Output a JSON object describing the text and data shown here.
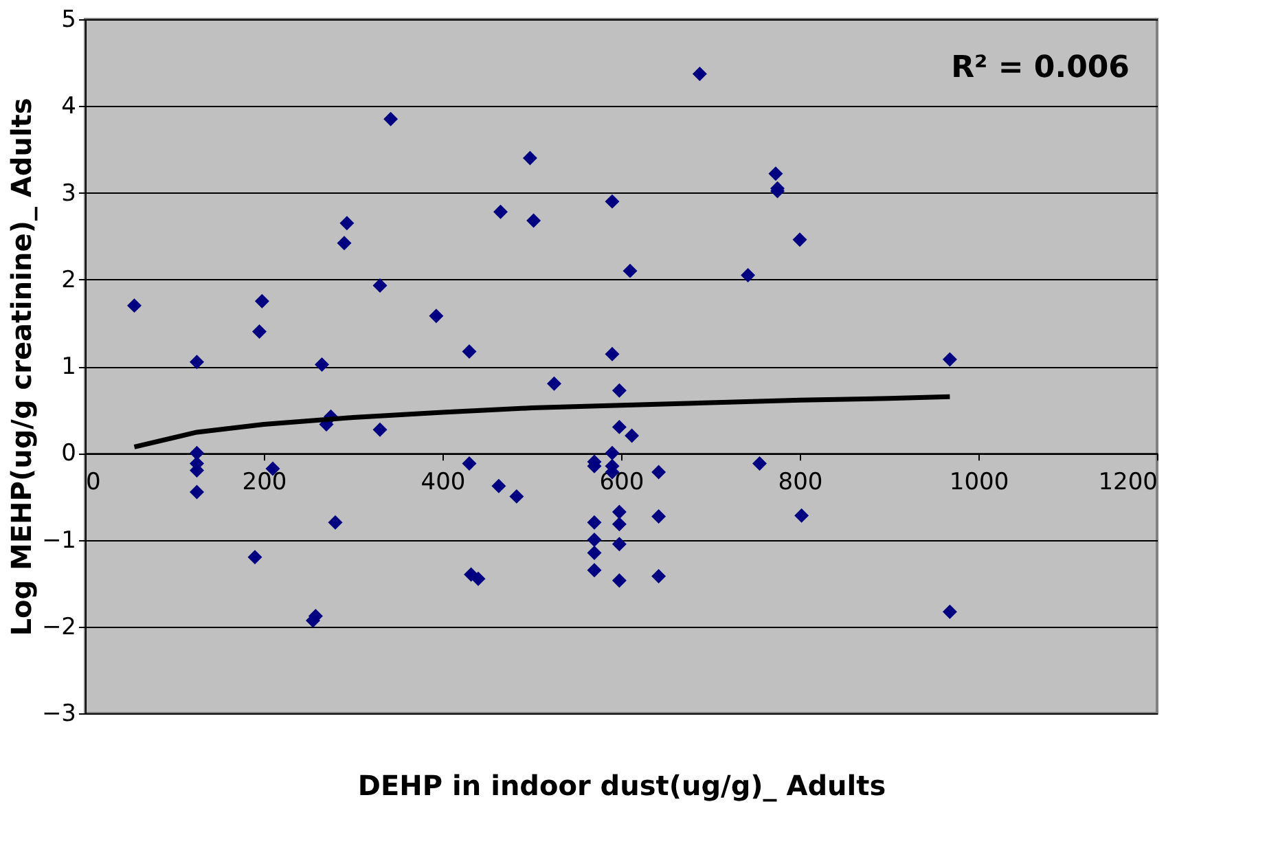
{
  "chart_data": {
    "type": "scatter",
    "xlabel": "DEHP in indoor dust(ug/g)_ Adults",
    "ylabel": "Log MEHP(ug/g creatinine)_ Adults",
    "annotations": [
      "R² = 0.006"
    ],
    "xlim": [
      0,
      1200
    ],
    "xticks": [
      0,
      200,
      400,
      600,
      800,
      1000,
      1200
    ],
    "ylim": [
      -3,
      5
    ],
    "yticks": [
      -3,
      -2,
      -1,
      0,
      1,
      2,
      3,
      4,
      5
    ],
    "grid": "y",
    "series": [
      {
        "type": "scatter",
        "color": "#000080",
        "marker": "diamond",
        "x": [
          55,
          125,
          125,
          125,
          125,
          125,
          190,
          195,
          198,
          210,
          255,
          258,
          265,
          270,
          275,
          280,
          290,
          293,
          330,
          330,
          342,
          393,
          430,
          430,
          432,
          440,
          463,
          465,
          483,
          498,
          502,
          525,
          570,
          570,
          570,
          570,
          570,
          570,
          590,
          590,
          590,
          590,
          590,
          598,
          598,
          598,
          598,
          598,
          598,
          610,
          612,
          642,
          642,
          642,
          688,
          742,
          755,
          773,
          775,
          775,
          800,
          802,
          968,
          968
        ],
        "values": [
          1.7,
          1.05,
          0,
          -0.12,
          -0.2,
          -0.45,
          -1.2,
          1.4,
          1.75,
          -0.18,
          -1.93,
          -1.88,
          1.02,
          0.33,
          0.42,
          -0.8,
          2.42,
          2.65,
          1.93,
          0.27,
          3.85,
          1.58,
          1.17,
          -0.12,
          -1.4,
          -1.45,
          -0.38,
          2.78,
          -0.5,
          3.4,
          2.68,
          0.8,
          -0.15,
          -0.1,
          -0.8,
          -1.0,
          -1.15,
          -1.35,
          2.9,
          1.14,
          0,
          -0.15,
          -0.22,
          0.72,
          0.3,
          -0.68,
          -0.82,
          -1.05,
          -1.47,
          2.1,
          0.2,
          -0.22,
          -0.73,
          -1.42,
          4.37,
          2.05,
          -0.12,
          3.22,
          3.05,
          3.02,
          2.46,
          -0.72,
          1.08,
          -1.83
        ]
      },
      {
        "type": "line",
        "color": "#000000",
        "marker": "none",
        "line_style": "solid",
        "x": [
          55,
          125,
          200,
          300,
          400,
          500,
          600,
          700,
          800,
          900,
          968
        ],
        "values": [
          0.07,
          0.24,
          0.33,
          0.41,
          0.47,
          0.52,
          0.55,
          0.58,
          0.61,
          0.63,
          0.65
        ]
      }
    ]
  }
}
